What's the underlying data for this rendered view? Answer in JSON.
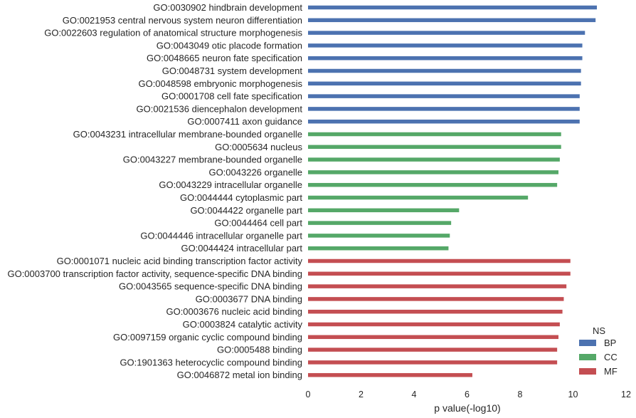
{
  "chart_data": {
    "type": "bar",
    "orientation": "horizontal",
    "xlabel": "p value(-log10)",
    "ylabel": "",
    "xlim": [
      0,
      12
    ],
    "xticks": [
      0,
      2,
      4,
      6,
      8,
      10,
      12
    ],
    "grid": false,
    "legend": {
      "title": "NS",
      "placement": "bottom-right",
      "entries": [
        {
          "name": "BP",
          "color": "#4c72b0"
        },
        {
          "name": "CC",
          "color": "#55a868"
        },
        {
          "name": "MF",
          "color": "#c44e52"
        }
      ]
    },
    "bars": [
      {
        "label": "GO:0030902 hindbrain development",
        "value": 10.9,
        "ns": "BP"
      },
      {
        "label": "GO:0021953 central nervous system neuron differentiation",
        "value": 10.85,
        "ns": "BP"
      },
      {
        "label": "GO:0022603 regulation of anatomical structure morphogenesis",
        "value": 10.45,
        "ns": "BP"
      },
      {
        "label": "GO:0043049 otic placode formation",
        "value": 10.35,
        "ns": "BP"
      },
      {
        "label": "GO:0048665 neuron fate specification",
        "value": 10.35,
        "ns": "BP"
      },
      {
        "label": "GO:0048731 system development",
        "value": 10.3,
        "ns": "BP"
      },
      {
        "label": "GO:0048598 embryonic morphogenesis",
        "value": 10.3,
        "ns": "BP"
      },
      {
        "label": "GO:0001708 cell fate specification",
        "value": 10.25,
        "ns": "BP"
      },
      {
        "label": "GO:0021536 diencephalon development",
        "value": 10.25,
        "ns": "BP"
      },
      {
        "label": "GO:0007411 axon guidance",
        "value": 10.25,
        "ns": "BP"
      },
      {
        "label": "GO:0043231 intracellular membrane-bounded organelle",
        "value": 9.55,
        "ns": "CC"
      },
      {
        "label": "GO:0005634 nucleus",
        "value": 9.55,
        "ns": "CC"
      },
      {
        "label": "GO:0043227 membrane-bounded organelle",
        "value": 9.5,
        "ns": "CC"
      },
      {
        "label": "GO:0043226 organelle",
        "value": 9.45,
        "ns": "CC"
      },
      {
        "label": "GO:0043229 intracellular organelle",
        "value": 9.4,
        "ns": "CC"
      },
      {
        "label": "GO:0044444 cytoplasmic part",
        "value": 8.3,
        "ns": "CC"
      },
      {
        "label": "GO:0044422 organelle part",
        "value": 5.7,
        "ns": "CC"
      },
      {
        "label": "GO:0044464 cell part",
        "value": 5.4,
        "ns": "CC"
      },
      {
        "label": "GO:0044446 intracellular organelle part",
        "value": 5.35,
        "ns": "CC"
      },
      {
        "label": "GO:0044424 intracellular part",
        "value": 5.3,
        "ns": "CC"
      },
      {
        "label": "GO:0001071 nucleic acid binding transcription factor activity",
        "value": 9.9,
        "ns": "MF"
      },
      {
        "label": "GO:0003700 transcription factor activity, sequence-specific DNA binding",
        "value": 9.9,
        "ns": "MF"
      },
      {
        "label": "GO:0043565 sequence-specific DNA binding",
        "value": 9.75,
        "ns": "MF"
      },
      {
        "label": "GO:0003677 DNA binding",
        "value": 9.65,
        "ns": "MF"
      },
      {
        "label": "GO:0003676 nucleic acid binding",
        "value": 9.6,
        "ns": "MF"
      },
      {
        "label": "GO:0003824 catalytic activity",
        "value": 9.5,
        "ns": "MF"
      },
      {
        "label": "GO:0097159 organic cyclic compound binding",
        "value": 9.45,
        "ns": "MF"
      },
      {
        "label": "GO:0005488 binding",
        "value": 9.4,
        "ns": "MF"
      },
      {
        "label": "GO:1901363 heterocyclic compound binding",
        "value": 9.4,
        "ns": "MF"
      },
      {
        "label": "GO:0046872 metal ion binding",
        "value": 6.2,
        "ns": "MF"
      }
    ]
  }
}
